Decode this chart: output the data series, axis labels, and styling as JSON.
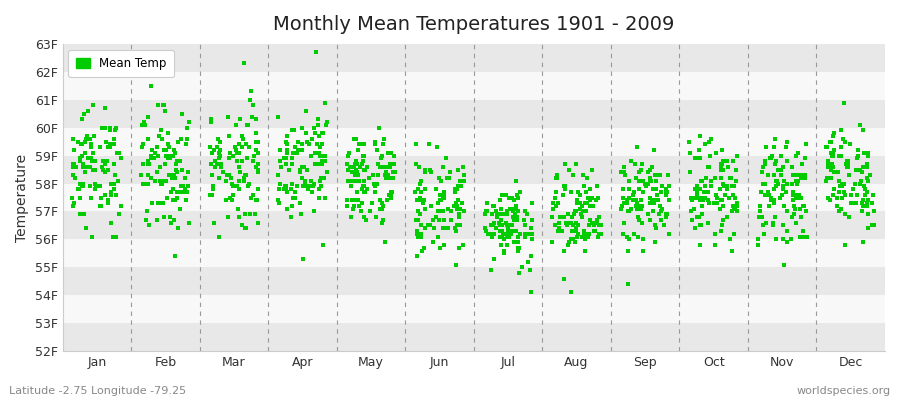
{
  "title": "Monthly Mean Temperatures 1901 - 2009",
  "ylabel": "Temperature",
  "xlabel_coords": "Latitude -2.75 Longitude -79.25",
  "watermark": "worldspecies.org",
  "ylim": [
    52,
    63
  ],
  "ytick_labels": [
    "52F",
    "53F",
    "54F",
    "55F",
    "56F",
    "57F",
    "58F",
    "59F",
    "60F",
    "61F",
    "62F",
    "63F"
  ],
  "months": [
    "Jan",
    "Feb",
    "Mar",
    "Apr",
    "May",
    "Jun",
    "Jul",
    "Aug",
    "Sep",
    "Oct",
    "Nov",
    "Dec"
  ],
  "n_years": 109,
  "marker_color": "#00cc00",
  "marker_size": 2.5,
  "background_color": "#ffffff",
  "band_color_odd": "#e8e8e8",
  "band_color_even": "#f8f8f8",
  "monthly_means": [
    58.55,
    58.55,
    58.65,
    58.8,
    58.15,
    57.2,
    56.6,
    56.8,
    57.4,
    57.75,
    57.7,
    58.2
  ],
  "monthly_stds": [
    1.05,
    1.15,
    1.15,
    1.0,
    0.85,
    0.9,
    0.75,
    0.85,
    0.8,
    0.85,
    0.85,
    0.95
  ],
  "dashed_line_color": "#999999",
  "spine_color": "#cccccc",
  "tick_label_color": "#333333",
  "title_fontsize": 14,
  "axis_label_fontsize": 10,
  "tick_fontsize": 9
}
